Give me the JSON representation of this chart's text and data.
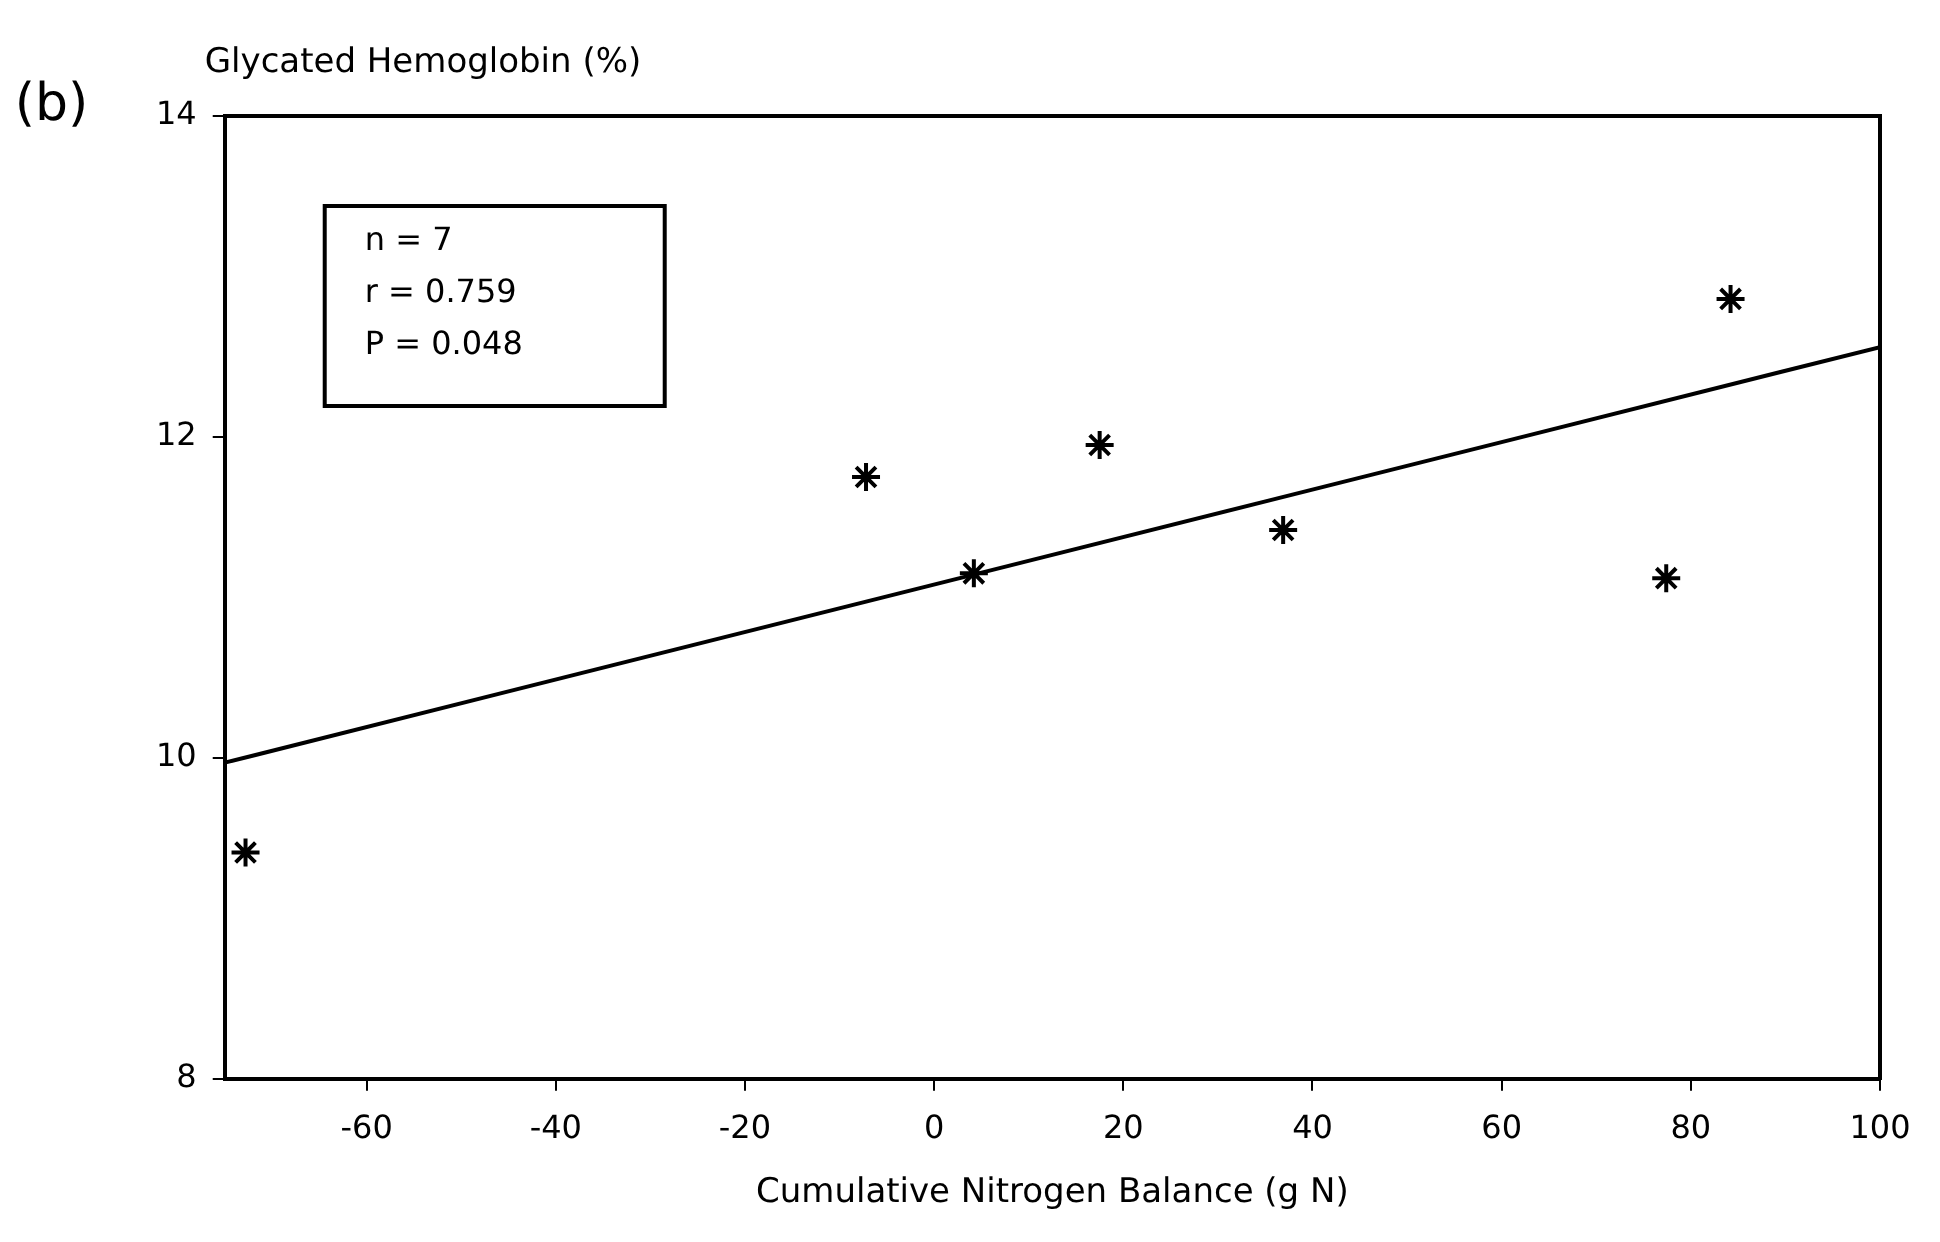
{
  "chart_data": {
    "type": "scatter",
    "ylabel": "Glycated Hemoglobin (%)",
    "xlabel": "Cumulative Nitrogen Balance (g N)",
    "annotations": [
      "(b)",
      "n = 7",
      "r = 0.759",
      "P = 0.048"
    ],
    "series": [
      {
        "color": "#000000",
        "marker": "cross",
        "x": [
          -72.8,
          -7.2,
          4.2,
          17.5,
          36.9,
          77.4,
          84.2
        ],
        "values": [
          9.41,
          11.75,
          11.15,
          11.95,
          11.42,
          11.12,
          12.86
        ]
      },
      {
        "type": "line",
        "color": "#000000",
        "marker": "none",
        "line_style": "solid",
        "x": [
          -75,
          100
        ],
        "values": [
          9.97,
          12.56
        ]
      }
    ],
    "xlim": [
      -75,
      100
    ],
    "xticks": [
      -60,
      -40,
      -20,
      0,
      20,
      40,
      60,
      80,
      100
    ],
    "ylim": [
      8,
      14
    ],
    "yticks": [
      8,
      10,
      12,
      14
    ],
    "grid": false,
    "legend": false
  }
}
